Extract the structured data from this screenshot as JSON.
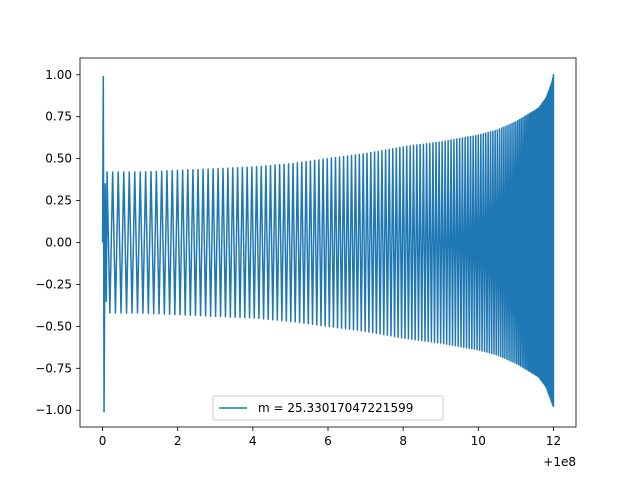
{
  "chart_data": {
    "type": "line",
    "title": "",
    "xlabel": "",
    "ylabel": "",
    "x_offset_label": "+1e8",
    "xlim": [
      -0.6,
      12.6
    ],
    "ylim": [
      -1.1,
      1.1
    ],
    "xticks": [
      0,
      2,
      4,
      6,
      8,
      10,
      12
    ],
    "xtick_labels": [
      "0",
      "2",
      "4",
      "6",
      "8",
      "10",
      "12"
    ],
    "yticks": [
      1.0,
      0.75,
      0.5,
      0.25,
      0.0,
      -0.25,
      -0.5,
      -0.75,
      -1.0
    ],
    "ytick_labels": [
      "1.00",
      "0.75",
      "0.50",
      "0.25",
      "0.00",
      "−0.25",
      "−0.50",
      "−0.75",
      "−1.00"
    ],
    "grid": false,
    "legend_position": "lower center",
    "series": [
      {
        "name": "m = 25.33017047221599",
        "color": "#1f77b4",
        "envelope": {
          "x": [
            0.0,
            0.05,
            0.1,
            0.5,
            1,
            2,
            3,
            4,
            5,
            6,
            7,
            8,
            9,
            10,
            10.5,
            11,
            11.3,
            11.6,
            11.8,
            11.95,
            12.0
          ],
          "upper": [
            0.99,
            0.35,
            0.42,
            0.42,
            0.42,
            0.43,
            0.44,
            0.45,
            0.47,
            0.5,
            0.53,
            0.57,
            0.6,
            0.64,
            0.67,
            0.72,
            0.76,
            0.8,
            0.86,
            0.95,
            1.0
          ],
          "lower": [
            -1.01,
            -0.35,
            -0.42,
            -0.42,
            -0.42,
            -0.43,
            -0.44,
            -0.45,
            -0.47,
            -0.5,
            -0.53,
            -0.57,
            -0.6,
            -0.64,
            -0.67,
            -0.72,
            -0.76,
            -0.8,
            -0.86,
            -0.95,
            -0.98
          ]
        }
      }
    ]
  }
}
